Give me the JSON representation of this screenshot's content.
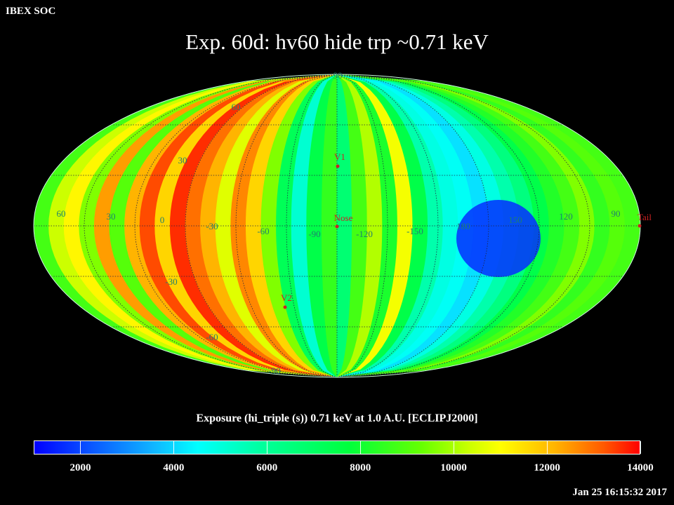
{
  "header": {
    "corner_label": "IBEX SOC",
    "title": "Exp.   60d: hv60 hide trp ~0.71 keV"
  },
  "map": {
    "projection": "mollweide",
    "lon_labels": [
      "60",
      "30",
      "0",
      "-30",
      "-60",
      "-90",
      "-120",
      "-150",
      "180",
      "150",
      "120",
      "90"
    ],
    "lat_labels": [
      "90",
      "60",
      "30",
      "-30",
      "-60",
      "-90"
    ],
    "markers": [
      {
        "label": "V1",
        "color": "#cc2222"
      },
      {
        "label": "Nose",
        "color": "#cc2222"
      },
      {
        "label": "V2",
        "color": "#cc2222"
      },
      {
        "label": "Tail",
        "color": "#cc2222"
      }
    ],
    "label_color": "#1f7f6f"
  },
  "colorbar": {
    "title": "Exposure (hi_triple (s))  0.71 keV at 1.0 A.U. [ECLIPJ2000]",
    "ticks": [
      "2000",
      "4000",
      "6000",
      "8000",
      "10000",
      "12000",
      "14000"
    ],
    "range": [
      1000,
      14000
    ]
  },
  "footer": {
    "timestamp": "Jan 25 16:15:32 2017"
  }
}
